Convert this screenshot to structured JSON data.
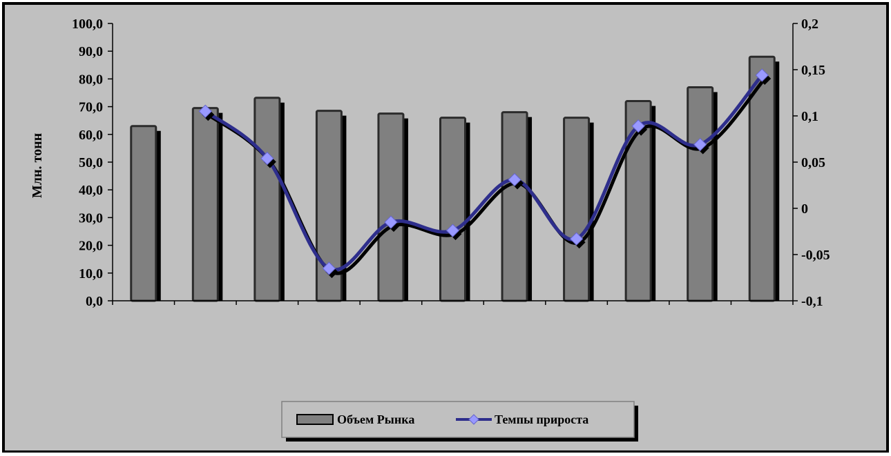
{
  "chart_data": {
    "type": "bar",
    "title": "",
    "xlabel": "",
    "ylabel": "Млн. тонн",
    "categories": [
      "",
      "",
      "",
      "",
      "",
      "",
      "",
      "",
      "",
      "",
      ""
    ],
    "ylim": [
      0,
      100
    ],
    "y_ticks": [
      "0,0",
      "10,0",
      "20,0",
      "30,0",
      "40,0",
      "50,0",
      "60,0",
      "70,0",
      "80,0",
      "90,0",
      "100,0"
    ],
    "y2lim": [
      -0.1,
      0.2
    ],
    "y2_ticks": [
      "-0,1",
      "-0,05",
      "0",
      "0,05",
      "0,1",
      "0,15",
      "0,2"
    ],
    "grid": false,
    "legend_position": "bottom",
    "series": [
      {
        "name": "Объем Рынка",
        "type": "bar",
        "axis": "left",
        "color": "#808080",
        "values": [
          63,
          69.5,
          73.2,
          68.5,
          67.5,
          66,
          68,
          66,
          72,
          77,
          88
        ]
      },
      {
        "name": "Темпы прироста",
        "type": "line",
        "axis": "right",
        "color": "#2e2e8c",
        "marker_color": "#9999ff",
        "values": [
          null,
          0.105,
          0.054,
          -0.065,
          -0.015,
          -0.024,
          0.031,
          -0.033,
          0.089,
          0.069,
          0.144
        ]
      }
    ]
  }
}
